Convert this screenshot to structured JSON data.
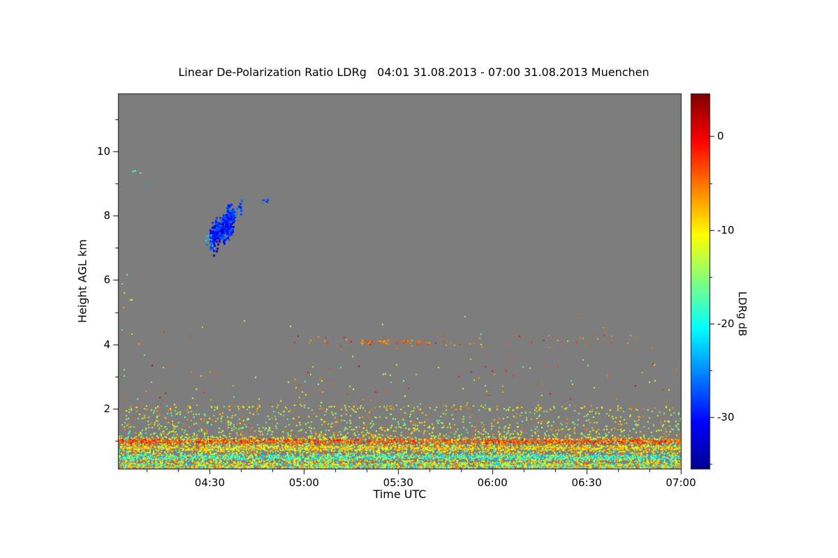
{
  "chart_data": {
    "type": "heatmap",
    "title": "Linear De-Polarization Ratio LDRg   04:01 31.08.2013 - 07:00 31.08.2013 Muenchen",
    "station": "Muenchen",
    "period": "04:01 31.08.2013 - 07:00 31.08.2013",
    "xlabel": "Time UTC",
    "ylabel": "Height AGL km",
    "background_color": "#7d7d7d",
    "seed": 1337,
    "x_axis": {
      "start_minutes": 1,
      "end_minutes": 180,
      "minor_step_minutes": 10,
      "ticks": [
        {
          "minutes": 30,
          "label": "04:30"
        },
        {
          "minutes": 60,
          "label": "05:00"
        },
        {
          "minutes": 90,
          "label": "05:30"
        },
        {
          "minutes": 120,
          "label": "06:00"
        },
        {
          "minutes": 150,
          "label": "06:30"
        },
        {
          "minutes": 180,
          "label": "07:00"
        }
      ]
    },
    "y_axis": {
      "min_km": 0.13,
      "max_km": 11.78,
      "minor_step_km": 1,
      "ticks": [
        {
          "km": 10,
          "label": "10"
        },
        {
          "km": 8,
          "label": "8"
        },
        {
          "km": 6,
          "label": "6"
        },
        {
          "km": 4,
          "label": "4"
        },
        {
          "km": 2,
          "label": "2"
        }
      ]
    },
    "colorbar": {
      "label": "LDRg dB",
      "vmin": -35.5,
      "vmax": 4.5,
      "minor_step": 5,
      "ticks": [
        {
          "value": 0,
          "label": "0"
        },
        {
          "value": -10,
          "label": "-10"
        },
        {
          "value": -20,
          "label": "-20"
        },
        {
          "value": -30,
          "label": "-30"
        }
      ],
      "colormap": [
        {
          "pos": 0.0,
          "color": "#00008f"
        },
        {
          "pos": 0.125,
          "color": "#0000ff"
        },
        {
          "pos": 0.375,
          "color": "#00ffff"
        },
        {
          "pos": 0.625,
          "color": "#ffff00"
        },
        {
          "pos": 0.875,
          "color": "#ff0000"
        },
        {
          "pos": 1.0,
          "color": "#800000"
        }
      ]
    },
    "features": [
      {
        "name": "boundary-layer-upper",
        "t": [
          1,
          180
        ],
        "h": [
          1.05,
          2.12
        ],
        "count": 1500,
        "v": [
          -18,
          -4
        ],
        "size": 2,
        "density_power": 2.2
      },
      {
        "name": "boundary-layer-main",
        "t": [
          1,
          180
        ],
        "h": [
          0.15,
          1.05
        ],
        "count": 5000,
        "v": [
          -16,
          -3
        ],
        "size": 2,
        "density_power": 1.15
      },
      {
        "name": "boundary-layer-cool",
        "t": [
          1,
          180
        ],
        "h": [
          0.15,
          0.95
        ],
        "count": 700,
        "v": [
          -25,
          -15
        ],
        "size": 2,
        "density_power": 1.15
      },
      {
        "name": "dotted-line-2km",
        "t": [
          1,
          180
        ],
        "h": [
          1.95,
          2.08
        ],
        "count": 90,
        "v": [
          -14,
          -4
        ],
        "size": 2
      },
      {
        "name": "streak-red-1km",
        "t": [
          1,
          180
        ],
        "h": [
          0.92,
          1.06
        ],
        "count": 1100,
        "v": [
          -7,
          0
        ],
        "size": 2
      },
      {
        "name": "streak-yellow-0.8km",
        "t": [
          1,
          180
        ],
        "h": [
          0.72,
          0.85
        ],
        "count": 900,
        "v": [
          -13,
          -5
        ],
        "size": 2
      },
      {
        "name": "streak-cyan-0.5km",
        "t": [
          1,
          180
        ],
        "h": [
          0.42,
          0.57
        ],
        "count": 1200,
        "v": [
          -24,
          -13
        ],
        "size": 2
      },
      {
        "name": "streak-bottom",
        "t": [
          1,
          180
        ],
        "h": [
          0.16,
          0.31
        ],
        "count": 1300,
        "v": [
          -24,
          -3
        ],
        "size": 2
      },
      {
        "name": "scattered-2-3km",
        "t": [
          1,
          180
        ],
        "h": [
          2.1,
          3.4
        ],
        "count": 110,
        "v": [
          -18,
          2
        ],
        "size": 2
      },
      {
        "name": "scattered-3-5km",
        "t": [
          1,
          180
        ],
        "h": [
          3.4,
          5.0
        ],
        "count": 22,
        "v": [
          -16,
          -2
        ],
        "size": 2
      },
      {
        "name": "specks-4km",
        "t": [
          55,
          172
        ],
        "h": [
          3.9,
          4.3
        ],
        "count": 60,
        "v": [
          -8,
          0
        ],
        "size": 2
      },
      {
        "name": "streak-4km",
        "t": [
          78,
          100
        ],
        "h": [
          4.0,
          4.14
        ],
        "count": 45,
        "v": [
          -8,
          -2
        ],
        "size": 2
      },
      {
        "name": "cloud-core",
        "t": [
          30,
          37.5
        ],
        "count": 340,
        "v": [
          -33,
          -26
        ],
        "size": 3,
        "slant": {
          "h_start": 7.25,
          "h_end": 7.95,
          "spread": 0.22
        }
      },
      {
        "name": "cloud-arm",
        "t": [
          36,
          40
        ],
        "count": 35,
        "v": [
          -31,
          -25
        ],
        "size": 3,
        "slant": {
          "h_start": 7.95,
          "h_end": 8.3,
          "spread": 0.09
        }
      },
      {
        "name": "cloud-edge-left",
        "t": [
          28.5,
          31.5
        ],
        "h": [
          7.05,
          7.45
        ],
        "count": 16,
        "v": [
          -27,
          -20
        ],
        "size": 2
      },
      {
        "name": "cloud-detached",
        "t": [
          46.5,
          49
        ],
        "h": [
          8.4,
          8.65
        ],
        "count": 8,
        "v": [
          -30,
          -24
        ],
        "size": 2
      },
      {
        "name": "speck-high-left",
        "t": [
          5,
          8
        ],
        "h": [
          9.3,
          9.55
        ],
        "count": 4,
        "v": [
          -22,
          -13
        ],
        "size": 2
      },
      {
        "name": "speck-high-left2",
        "t": [
          8,
          11
        ],
        "h": [
          8.8,
          9.0
        ],
        "count": 2,
        "v": [
          -24,
          -18
        ],
        "size": 2
      },
      {
        "name": "left-edge-specks",
        "t": [
          1,
          5.5
        ],
        "h": [
          4.3,
          6.2
        ],
        "count": 8,
        "v": [
          -18,
          -6
        ],
        "size": 2
      }
    ]
  }
}
